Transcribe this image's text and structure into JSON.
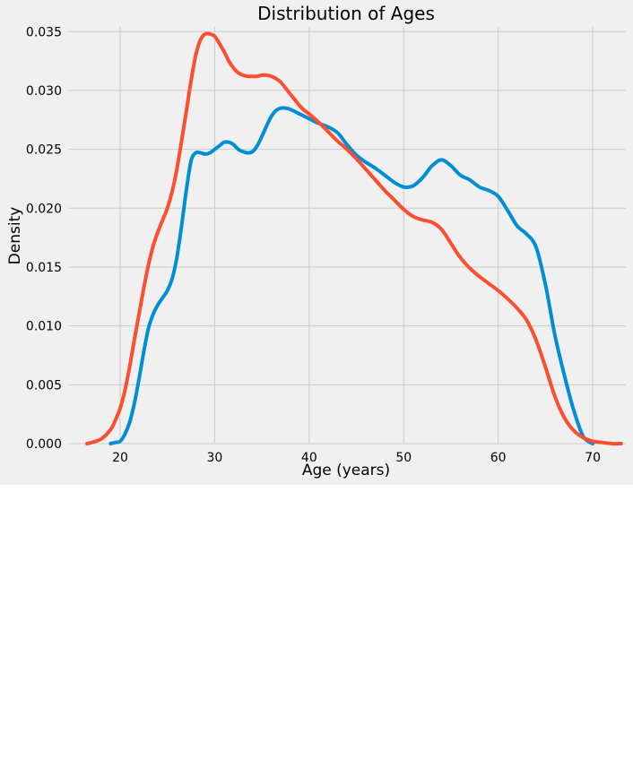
{
  "chart_data": {
    "type": "line",
    "title": "Distribution of Ages",
    "xlabel": "Age (years)",
    "ylabel": "Density",
    "xlim": [
      14.5,
      73.5
    ],
    "ylim": [
      0,
      0.0354
    ],
    "xticks": [
      20,
      30,
      40,
      50,
      60,
      70
    ],
    "yticks": [
      0.0,
      0.005,
      0.01,
      0.015,
      0.02,
      0.025,
      0.03,
      0.035
    ],
    "xtick_labels": [
      "20",
      "30",
      "40",
      "50",
      "60",
      "70"
    ],
    "ytick_labels": [
      "0.000",
      "0.005",
      "0.010",
      "0.015",
      "0.020",
      "0.025",
      "0.030",
      "0.035"
    ],
    "grid": true,
    "background": "#f0f0f0",
    "grid_color": "#cbcbcb",
    "series": [
      {
        "color": "#008fd5",
        "x": [
          19,
          19.5,
          20,
          20.5,
          21,
          21.5,
          22,
          22.5,
          23,
          23.5,
          24,
          24.5,
          25,
          25.5,
          26,
          26.5,
          27,
          27.5,
          28,
          28.5,
          29,
          29.5,
          30,
          30.5,
          31,
          31.5,
          32,
          32.5,
          33,
          33.5,
          34,
          34.5,
          35,
          35.5,
          36,
          36.5,
          37,
          37.5,
          38,
          38.5,
          39,
          39.5,
          40,
          41,
          42,
          43,
          44,
          45,
          46,
          47,
          48,
          49,
          50,
          51,
          52,
          53,
          54,
          55,
          56,
          57,
          58,
          59,
          60,
          61,
          62,
          63,
          64,
          65,
          66,
          67,
          68,
          69,
          70
        ],
        "y": [
          0.0,
          0.0001,
          0.0002,
          0.0008,
          0.0018,
          0.0034,
          0.0055,
          0.0078,
          0.0098,
          0.011,
          0.0118,
          0.0124,
          0.013,
          0.014,
          0.0158,
          0.0185,
          0.0215,
          0.024,
          0.0247,
          0.0247,
          0.0246,
          0.0247,
          0.025,
          0.0253,
          0.0256,
          0.0256,
          0.0254,
          0.025,
          0.0248,
          0.0247,
          0.0248,
          0.0253,
          0.0261,
          0.027,
          0.0278,
          0.0283,
          0.0285,
          0.0285,
          0.0284,
          0.0282,
          0.028,
          0.0278,
          0.0276,
          0.0272,
          0.0269,
          0.0264,
          0.0254,
          0.0245,
          0.0239,
          0.0234,
          0.0228,
          0.0222,
          0.0218,
          0.0219,
          0.0226,
          0.0236,
          0.0241,
          0.0236,
          0.0228,
          0.0224,
          0.0218,
          0.0215,
          0.021,
          0.0198,
          0.0185,
          0.0178,
          0.0167,
          0.0135,
          0.0092,
          0.0058,
          0.0028,
          0.0006,
          0.0
        ]
      },
      {
        "color": "#fc4f30",
        "x": [
          16.5,
          17,
          18,
          19,
          19.5,
          20,
          20.5,
          21,
          21.5,
          22,
          22.5,
          23,
          23.5,
          24,
          24.5,
          25,
          25.5,
          26,
          26.5,
          27,
          27.5,
          28,
          28.5,
          29,
          29.5,
          30,
          30.5,
          31,
          31.5,
          32,
          32.5,
          33,
          33.5,
          34,
          34.5,
          35,
          35.5,
          36,
          36.5,
          37,
          37.5,
          38,
          38.5,
          39,
          39.5,
          40,
          41,
          42,
          43,
          44,
          45,
          46,
          47,
          48,
          49,
          50,
          51,
          52,
          53,
          54,
          55,
          56,
          57,
          58,
          59,
          60,
          61,
          62,
          63,
          64,
          65,
          66,
          67,
          68,
          69,
          70,
          71,
          72,
          73
        ],
        "y": [
          0.0,
          0.0001,
          0.0004,
          0.0012,
          0.002,
          0.003,
          0.0045,
          0.0065,
          0.0088,
          0.011,
          0.0132,
          0.0152,
          0.0168,
          0.018,
          0.019,
          0.02,
          0.0214,
          0.0233,
          0.0257,
          0.0282,
          0.0308,
          0.033,
          0.0343,
          0.0348,
          0.0348,
          0.0346,
          0.034,
          0.0333,
          0.0325,
          0.0319,
          0.0315,
          0.0313,
          0.0312,
          0.0312,
          0.0312,
          0.0313,
          0.0313,
          0.0312,
          0.031,
          0.0307,
          0.0302,
          0.0297,
          0.0292,
          0.0287,
          0.0283,
          0.028,
          0.0273,
          0.0265,
          0.0257,
          0.025,
          0.0242,
          0.0233,
          0.0224,
          0.0215,
          0.0207,
          0.0199,
          0.0193,
          0.019,
          0.0188,
          0.0182,
          0.017,
          0.0158,
          0.0149,
          0.0142,
          0.0136,
          0.013,
          0.0123,
          0.0115,
          0.0105,
          0.0088,
          0.0065,
          0.004,
          0.0022,
          0.0011,
          0.0005,
          0.0002,
          0.0001,
          0.0,
          0.0
        ]
      }
    ]
  }
}
